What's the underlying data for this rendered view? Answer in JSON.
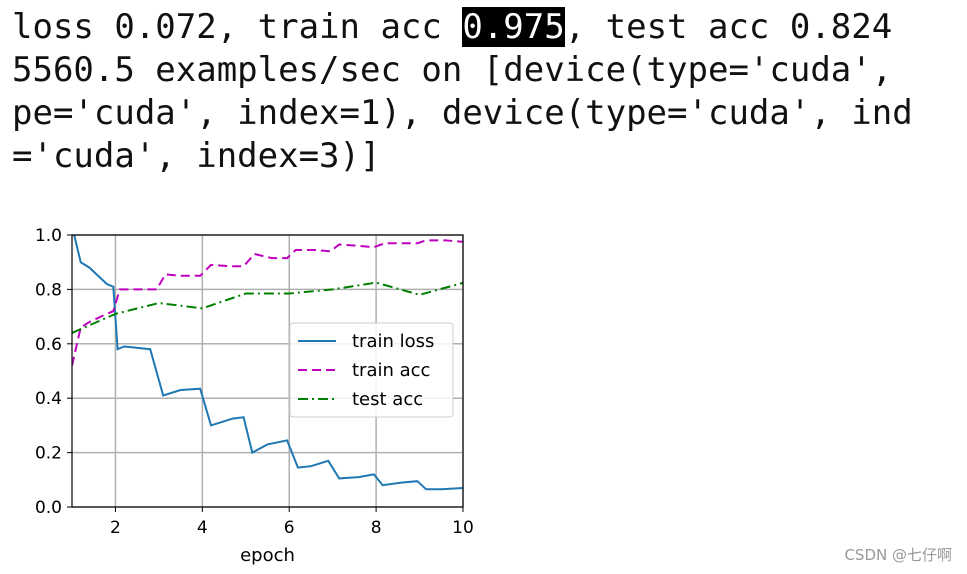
{
  "output": {
    "lines": [
      {
        "parts": [
          "loss 0.072, train acc ",
          "0.975",
          ", test acc 0.824"
        ]
      },
      {
        "parts": [
          "5560.5 examples/sec on [device(type='cuda',"
        ]
      },
      {
        "parts": [
          "pe='cuda', index=1), device(type='cuda', ind"
        ]
      },
      {
        "parts": [
          "='cuda', index=3)]"
        ]
      }
    ]
  },
  "chart_data": {
    "type": "line",
    "xlabel": "epoch",
    "xlim": [
      1,
      10
    ],
    "ylim": [
      0,
      1
    ],
    "xticks": [
      2,
      4,
      6,
      8,
      10
    ],
    "yticks": [
      {
        "value": 0,
        "label": "0.0"
      },
      0.2,
      0.4,
      0.6,
      0.8,
      {
        "value": 1,
        "label": "1.0"
      }
    ],
    "grid": true,
    "legend": "center right",
    "series": [
      {
        "name": "train loss",
        "color": "#1f77b4",
        "linestyle": "solid",
        "x": [
          1.05,
          1.2,
          1.4,
          1.8,
          1.95,
          2.05,
          2.2,
          2.8,
          3.1,
          3.5,
          3.95,
          4.2,
          4.7,
          4.95,
          5.15,
          5.5,
          5.95,
          6.2,
          6.5,
          6.9,
          7.15,
          7.6,
          7.95,
          8.15,
          8.6,
          8.95,
          9.15,
          9.5,
          10
        ],
        "values": [
          1.0,
          0.9,
          0.88,
          0.82,
          0.81,
          0.58,
          0.59,
          0.58,
          0.41,
          0.43,
          0.435,
          0.3,
          0.325,
          0.33,
          0.2,
          0.23,
          0.245,
          0.145,
          0.15,
          0.17,
          0.105,
          0.11,
          0.12,
          0.08,
          0.09,
          0.095,
          0.065,
          0.065,
          0.07
        ]
      },
      {
        "name": "train acc",
        "color": "#bf00bf",
        "linestyle": "dashed",
        "x": [
          1.0,
          1.2,
          1.4,
          1.8,
          1.95,
          2.1,
          2.5,
          2.95,
          3.15,
          3.5,
          3.95,
          4.2,
          4.7,
          4.95,
          5.2,
          5.6,
          5.95,
          6.15,
          6.6,
          6.95,
          7.15,
          7.6,
          7.95,
          8.2,
          8.6,
          8.95,
          9.15,
          9.6,
          10
        ],
        "values": [
          0.52,
          0.66,
          0.68,
          0.71,
          0.72,
          0.8,
          0.8,
          0.8,
          0.855,
          0.85,
          0.85,
          0.89,
          0.885,
          0.885,
          0.93,
          0.915,
          0.915,
          0.945,
          0.945,
          0.94,
          0.965,
          0.96,
          0.955,
          0.97,
          0.97,
          0.97,
          0.98,
          0.98,
          0.975
        ]
      },
      {
        "name": "test acc",
        "color": "#007f00",
        "linestyle": "dashdot",
        "x": [
          1,
          2,
          3,
          4,
          5,
          6,
          7,
          8,
          9,
          10
        ],
        "values": [
          0.64,
          0.71,
          0.75,
          0.73,
          0.785,
          0.785,
          0.8,
          0.825,
          0.78,
          0.824
        ]
      }
    ]
  },
  "watermark": "CSDN @七仔啊"
}
